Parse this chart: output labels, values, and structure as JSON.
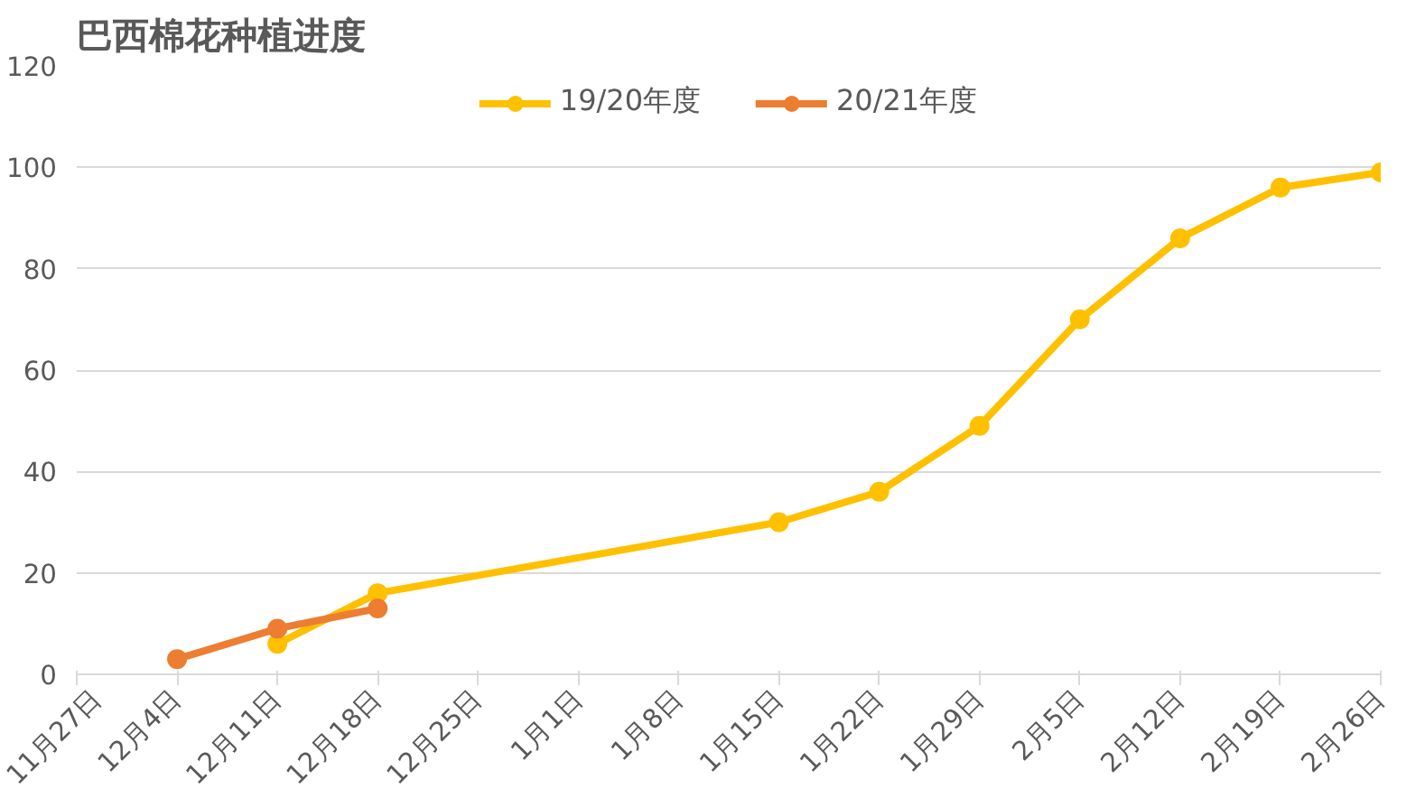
{
  "chart_data": {
    "type": "line",
    "title": "巴西棉花种植进度",
    "categories": [
      "11月27日",
      "12月4日",
      "12月11日",
      "12月18日",
      "12月25日",
      "1月1日",
      "1月8日",
      "1月15日",
      "1月22日",
      "1月29日",
      "2月5日",
      "2月12日",
      "2月19日",
      "2月26日"
    ],
    "ylim": [
      0,
      120
    ],
    "yticks": [
      0,
      20,
      40,
      60,
      80,
      100,
      120
    ],
    "grid": "y",
    "legend": "top",
    "marker": "circle",
    "line_style": "solid",
    "series": [
      {
        "name": "19/20年度",
        "color": "#ffc000",
        "values": [
          null,
          null,
          6,
          16,
          null,
          null,
          null,
          30,
          36,
          49,
          70,
          86,
          96,
          99
        ]
      },
      {
        "name": "20/21年度",
        "color": "#ed7d31",
        "values": [
          null,
          3,
          9,
          13,
          null,
          null,
          null,
          null,
          null,
          null,
          null,
          null,
          null,
          null
        ]
      }
    ]
  }
}
